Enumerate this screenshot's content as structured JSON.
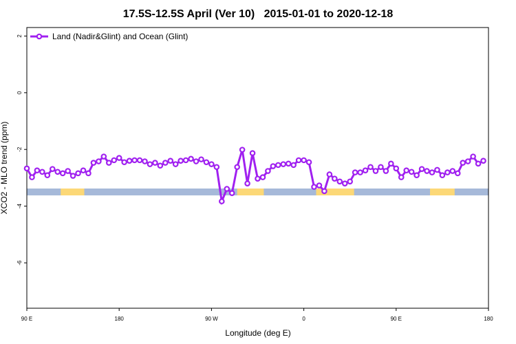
{
  "chart_data": {
    "type": "line",
    "title": "17.5S-12.5S April (Ver 10)   2015-01-01 to 2020-12-18",
    "x_label": "Longitude (deg E)",
    "y_label": "XCO2 - MLO trend (ppm)",
    "x": [
      90,
      95,
      100,
      105,
      110,
      115,
      120,
      125,
      130,
      135,
      140,
      145,
      150,
      155,
      160,
      165,
      170,
      175,
      180,
      185,
      190,
      195,
      200,
      205,
      210,
      215,
      220,
      225,
      230,
      235,
      240,
      245,
      250,
      255,
      260,
      265,
      270,
      275,
      280,
      285,
      290,
      295,
      300,
      305,
      310,
      315,
      320,
      325,
      330,
      335,
      340,
      345,
      350,
      355,
      360,
      365,
      370,
      375,
      380,
      385,
      390,
      395,
      400,
      405,
      410,
      415,
      420,
      425,
      430,
      435,
      440,
      445,
      450,
      455,
      460,
      465,
      470,
      475,
      480,
      485,
      490,
      495,
      500,
      505,
      510,
      515,
      520,
      525,
      530,
      535
    ],
    "series": [
      {
        "name": "Land (Nadir&Glint) and Ocean (Glint)",
        "color": "#a020f0",
        "values": [
          -2.67,
          -2.98,
          -2.74,
          -2.79,
          -2.91,
          -2.69,
          -2.79,
          -2.84,
          -2.76,
          -2.93,
          -2.84,
          -2.74,
          -2.84,
          -2.47,
          -2.42,
          -2.25,
          -2.47,
          -2.38,
          -2.3,
          -2.45,
          -2.4,
          -2.38,
          -2.38,
          -2.42,
          -2.52,
          -2.47,
          -2.57,
          -2.47,
          -2.4,
          -2.52,
          -2.4,
          -2.38,
          -2.33,
          -2.42,
          -2.35,
          -2.45,
          -2.52,
          -2.62,
          -3.83,
          -3.39,
          -3.54,
          -2.62,
          -2.01,
          -3.2,
          -2.13,
          -3.03,
          -2.98,
          -2.76,
          -2.59,
          -2.55,
          -2.52,
          -2.5,
          -2.55,
          -2.38,
          -2.38,
          -2.45,
          -3.32,
          -3.27,
          -3.47,
          -2.88,
          -3.03,
          -3.13,
          -3.2,
          -3.13,
          -2.81,
          -2.81,
          -2.74,
          -2.62,
          -2.76,
          -2.62,
          -2.76,
          -2.5,
          -2.67,
          -2.98,
          -2.74,
          -2.79,
          -2.91,
          -2.69,
          -2.76,
          -2.81,
          -2.72,
          -2.91,
          -2.81,
          -2.76,
          -2.84,
          -2.47,
          -2.42,
          -2.25,
          -2.5,
          -2.4
        ]
      }
    ],
    "land_bands": [
      [
        123,
        146
      ],
      [
        295,
        321
      ],
      [
        372,
        409
      ],
      [
        483,
        507
      ]
    ],
    "xlim": [
      90,
      540
    ],
    "xticks": [
      {
        "value": 90,
        "label": "90 E"
      },
      180,
      {
        "value": 270,
        "label": "90 W"
      },
      {
        "value": 360,
        "label": "0"
      },
      {
        "value": 450,
        "label": "90 E"
      },
      {
        "value": 540,
        "label": "180"
      }
    ],
    "ylim": [
      -7.6,
      2.3
    ],
    "yticks": [
      2,
      0,
      -2,
      -4,
      -6
    ],
    "legend": "top-left"
  }
}
